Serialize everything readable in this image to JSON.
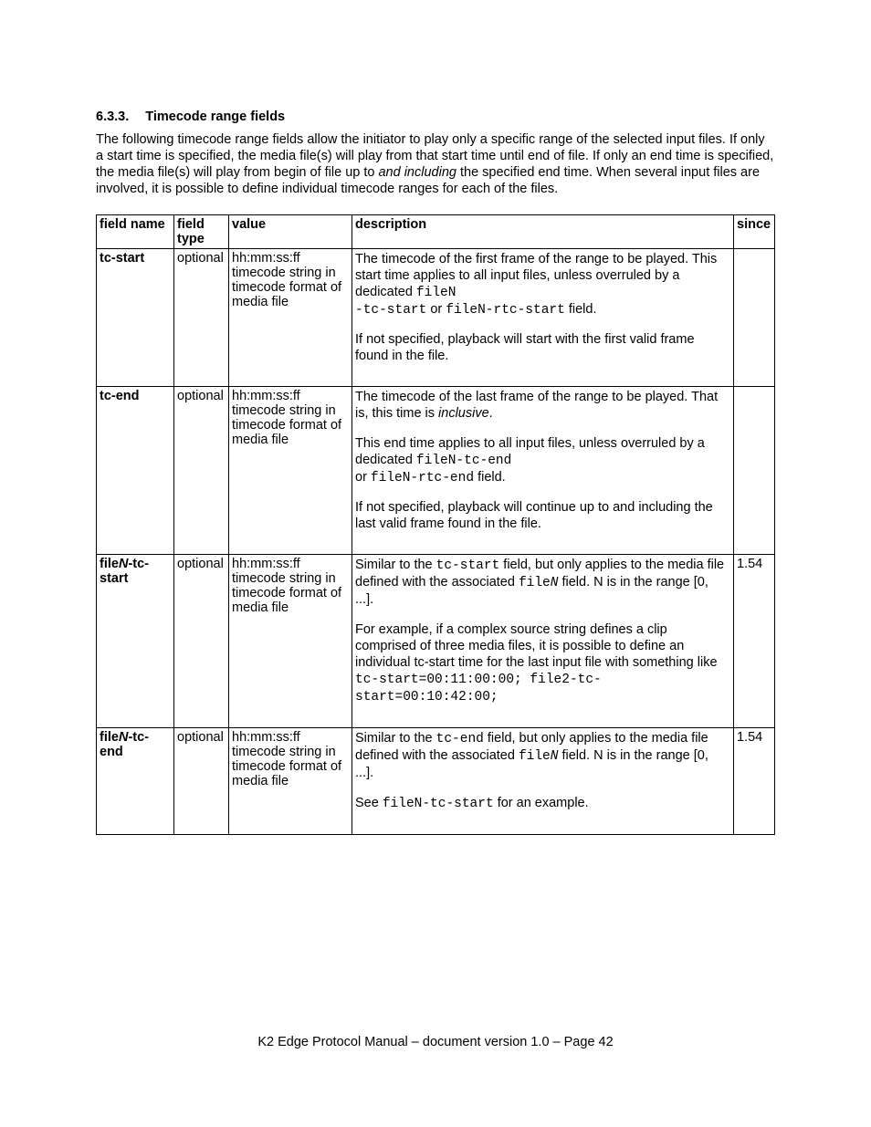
{
  "section": {
    "number": "6.3.3.",
    "title": "Timecode range fields"
  },
  "intro": {
    "pre": "The following timecode range fields allow the initiator to play only a specific range of the selected input files. If only a start time is specified, the media file(s) will play from that start time until end of file. If only an end time is specified, the media file(s) will play from begin of file up to ",
    "em": "and including",
    "post": " the specified end time. When several input files are involved, it is possible to define individual timecode ranges for each of the files."
  },
  "table": {
    "headers": {
      "field_name": "field name",
      "field_type": "field type",
      "value": "value",
      "description": "description",
      "since": "since"
    },
    "value_text": "hh:mm:ss:ff timecode string in timecode format of media file",
    "optional": "optional",
    "rows": {
      "tc_start": {
        "name": "tc-start",
        "desc1a": "The timecode of the first frame of the range to be played. This start time applies to all input files, unless overruled by a dedicated ",
        "code1": "fileN",
        "code2": "-tc-start",
        "or": " or ",
        "code3": "fileN-rtc-start",
        "desc1b": " field.",
        "desc2": "If not specified, playback will start with the first valid frame found in the file.",
        "since": ""
      },
      "tc_end": {
        "name": "tc-end",
        "desc1a": "The timecode of the last frame of the range to be played. That is, this time is ",
        "em1": "inclusive",
        "desc1b": ".",
        "desc2a": "This end time applies to all input files, unless overruled by a dedicated ",
        "code1": "fileN-tc-end",
        "br_or": "or ",
        "code2": "fileN-rtc-end",
        "desc2b": " field.",
        "desc3": "If not specified, playback will continue up to and including the last valid frame found in the file.",
        "since": ""
      },
      "filen_tc_start": {
        "name_pre": "file",
        "name_em": "N",
        "name_post": "-tc-start",
        "desc1a": "Similar to the ",
        "code1": "tc-start",
        "desc1b": " field, but only applies to the media file defined with the associated ",
        "code2": "file",
        "code2em": "N",
        "desc1c": " field. N is in the range [0, ...].",
        "desc2a": "For example, if a complex source string defines a clip comprised of three media files, it is possible to define an individual tc-start time for the last input file with something like ",
        "code3": "tc-start=00:11:00:00; file2-tc-start=00:10:42:00;",
        "since": "1.54"
      },
      "filen_tc_end": {
        "name_pre": "file",
        "name_em": "N",
        "name_post": "-tc-end",
        "desc1a": "Similar to the ",
        "code1": "tc-end",
        "desc1b": " field, but only applies to the media file defined with the associated ",
        "code2": "file",
        "code2em": "N",
        "desc1c": " field. N is in the range [0, ...].",
        "desc2a": "See ",
        "code3": "fileN-tc-start",
        "desc2b": " for an example.",
        "since": "1.54"
      }
    }
  },
  "footer": "K2 Edge Protocol Manual – document version 1.0 – Page 42"
}
